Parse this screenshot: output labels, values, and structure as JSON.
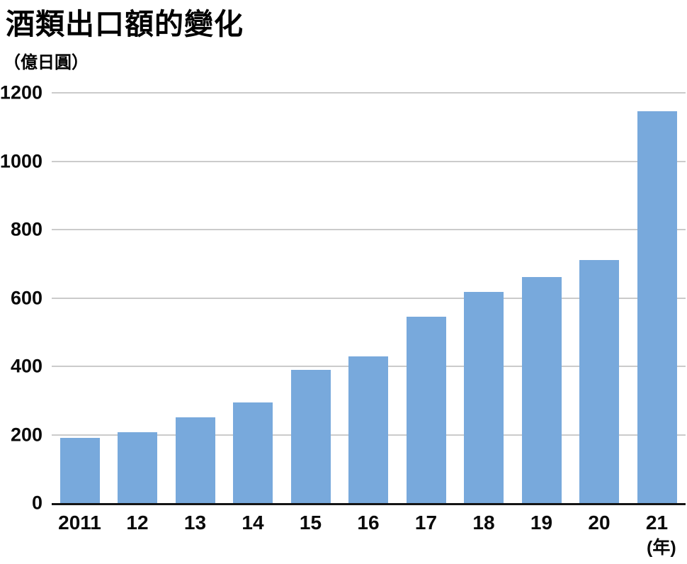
{
  "header": {
    "title": "酒類出口額的變化",
    "unit_label": "（億日圓）",
    "x_axis_unit": "(年)"
  },
  "chart_data": {
    "type": "bar",
    "title": "酒類出口額的變化",
    "ylabel": "（億日圓）",
    "xlabel": "(年)",
    "categories": [
      "2011",
      "12",
      "13",
      "14",
      "15",
      "16",
      "17",
      "18",
      "19",
      "20",
      "21"
    ],
    "values": [
      190,
      207,
      251,
      294,
      390,
      430,
      545,
      618,
      661,
      710,
      1147
    ],
    "ylim": [
      0,
      1200
    ],
    "yticks": [
      0,
      200,
      400,
      600,
      800,
      1000,
      1200
    ],
    "grid": "horizontal-light-gray",
    "legend": "none",
    "colors": {
      "bar": "#78a9dc",
      "gridline": "#cbcbcb",
      "axis_line": "#141414",
      "text": "#000000",
      "background": "#ffffff"
    }
  }
}
